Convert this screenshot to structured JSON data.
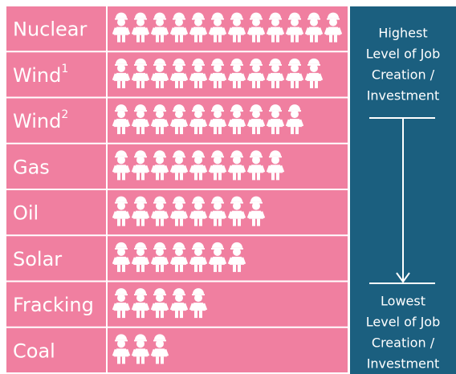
{
  "chart_data": {
    "type": "pictograph",
    "color": "#f07fa0",
    "icon_color": "#ffffff",
    "panel_color": "#1b5f7f",
    "categories": [
      "Nuclear",
      "Wind",
      "Wind",
      "Gas",
      "Oil",
      "Solar",
      "Fracking",
      "Coal"
    ],
    "footnotes": [
      null,
      "1",
      "2",
      null,
      null,
      null,
      null,
      null
    ],
    "values": [
      12,
      11,
      10,
      9,
      8,
      7,
      5,
      3
    ],
    "top_note": [
      "Highest",
      "Level of Job",
      "Creation /",
      "Investment"
    ],
    "bottom_note": [
      "Lowest",
      "Level of Job",
      "Creation /",
      "Investment"
    ]
  }
}
